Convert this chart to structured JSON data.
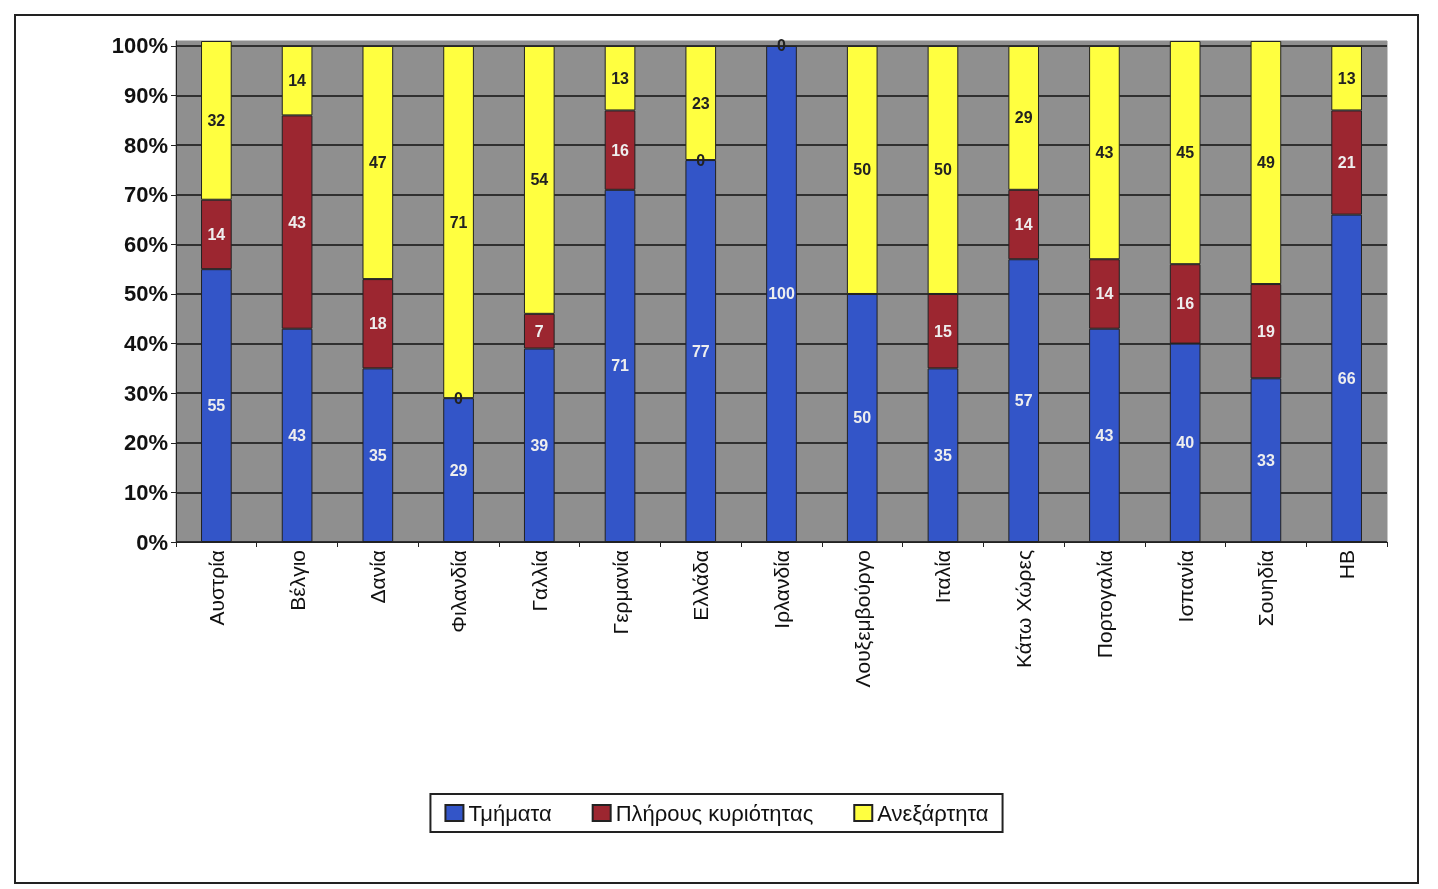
{
  "chart_data": {
    "type": "bar",
    "stacked": true,
    "categories": [
      "Αυστρία",
      "Βέλγιο",
      "Δανία",
      "Φιλανδία",
      "Γαλλία",
      "Γερμανία",
      "Ελλάδα",
      "Ιρλανδία",
      "Λουξεμβούργο",
      "Ιταλία",
      "Κάτω Χώρες",
      "Πορτογαλία",
      "Ισπανία",
      "Σουηδία",
      "ΗΒ"
    ],
    "series": [
      {
        "name": "Τμήματα",
        "color": "#3355c8",
        "values": [
          55,
          43,
          35,
          29,
          39,
          71,
          77,
          100,
          50,
          35,
          57,
          43,
          40,
          33,
          66
        ],
        "value_labels": [
          "55",
          "43",
          "35",
          "29",
          "39",
          "71",
          "77",
          "100",
          "50",
          "35",
          "57",
          "43",
          "40",
          "33",
          "66"
        ]
      },
      {
        "name": "Πλήρους κυριότητας",
        "color": "#9c2630",
        "values": [
          14,
          43,
          18,
          0,
          7,
          16,
          0,
          0,
          0,
          15,
          14,
          14,
          16,
          19,
          21
        ],
        "value_labels": [
          "14",
          "43",
          "18",
          null,
          "7",
          "16",
          null,
          null,
          null,
          "15",
          "14",
          "14",
          "16",
          "19",
          "21"
        ]
      },
      {
        "name": "Ανεξάρτητα",
        "color": "#ffff40",
        "values": [
          32,
          14,
          47,
          71,
          54,
          13,
          23,
          0,
          50,
          50,
          29,
          43,
          45,
          49,
          13
        ],
        "value_labels": [
          "32",
          "14",
          "47",
          "71",
          "54",
          "13",
          "23",
          "0",
          "50",
          "50",
          "29",
          "43",
          "45",
          "49",
          "13"
        ]
      }
    ],
    "ylim": [
      0,
      101
    ],
    "yticks": [
      {
        "value": 0,
        "label": "0%"
      },
      {
        "value": 10,
        "label": "10%"
      },
      {
        "value": 20,
        "label": "20%"
      },
      {
        "value": 30,
        "label": "30%"
      },
      {
        "value": 40,
        "label": "40%"
      },
      {
        "value": 50,
        "label": "50%"
      },
      {
        "value": 60,
        "label": "60%"
      },
      {
        "value": 70,
        "label": "70%"
      },
      {
        "value": 80,
        "label": "80%"
      },
      {
        "value": 90,
        "label": "90%"
      },
      {
        "value": 100,
        "label": "100%"
      }
    ],
    "annotations": [
      {
        "text": "0",
        "x": "Φιλανδία",
        "y": 29
      },
      {
        "text": "0",
        "x": "Ελλάδα",
        "y": 77
      }
    ],
    "grid": "y",
    "legend": "bottom"
  }
}
